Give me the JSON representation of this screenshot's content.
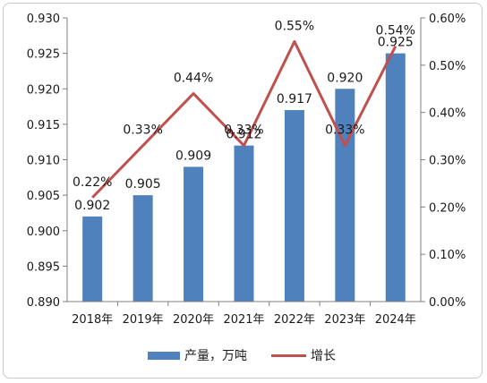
{
  "chart_data": {
    "type": "bar",
    "categories": [
      "2018年",
      "2019年",
      "2020年",
      "2021年",
      "2022年",
      "2023年",
      "2024年"
    ],
    "series": [
      {
        "name": "产量，万吨",
        "type": "bar",
        "axis": "left",
        "values": [
          0.902,
          0.905,
          0.909,
          0.912,
          0.917,
          0.92,
          0.925
        ],
        "labels": [
          "0.902",
          "0.905",
          "0.909",
          "0.912",
          "0.917",
          "0.920",
          "0.925"
        ],
        "color": "#4f81bd"
      },
      {
        "name": "增长",
        "type": "line",
        "axis": "right",
        "values": [
          0.22,
          0.33,
          0.44,
          0.33,
          0.55,
          0.33,
          0.54
        ],
        "labels": [
          "0.22%",
          "0.33%",
          "0.44%",
          "0.33%",
          "0.55%",
          "0.33%",
          "0.54%"
        ],
        "color": "#c0504d"
      }
    ],
    "y_left": {
      "min": 0.89,
      "max": 0.93,
      "step": 0.005,
      "ticks": [
        "0.890",
        "0.895",
        "0.900",
        "0.905",
        "0.910",
        "0.915",
        "0.920",
        "0.925",
        "0.930"
      ]
    },
    "y_right": {
      "min": 0,
      "max": 0.6,
      "step": 0.1,
      "ticks": [
        "0.00%",
        "0.10%",
        "0.20%",
        "0.30%",
        "0.40%",
        "0.50%",
        "0.60%"
      ]
    },
    "grid": false,
    "legend": "bottom"
  }
}
